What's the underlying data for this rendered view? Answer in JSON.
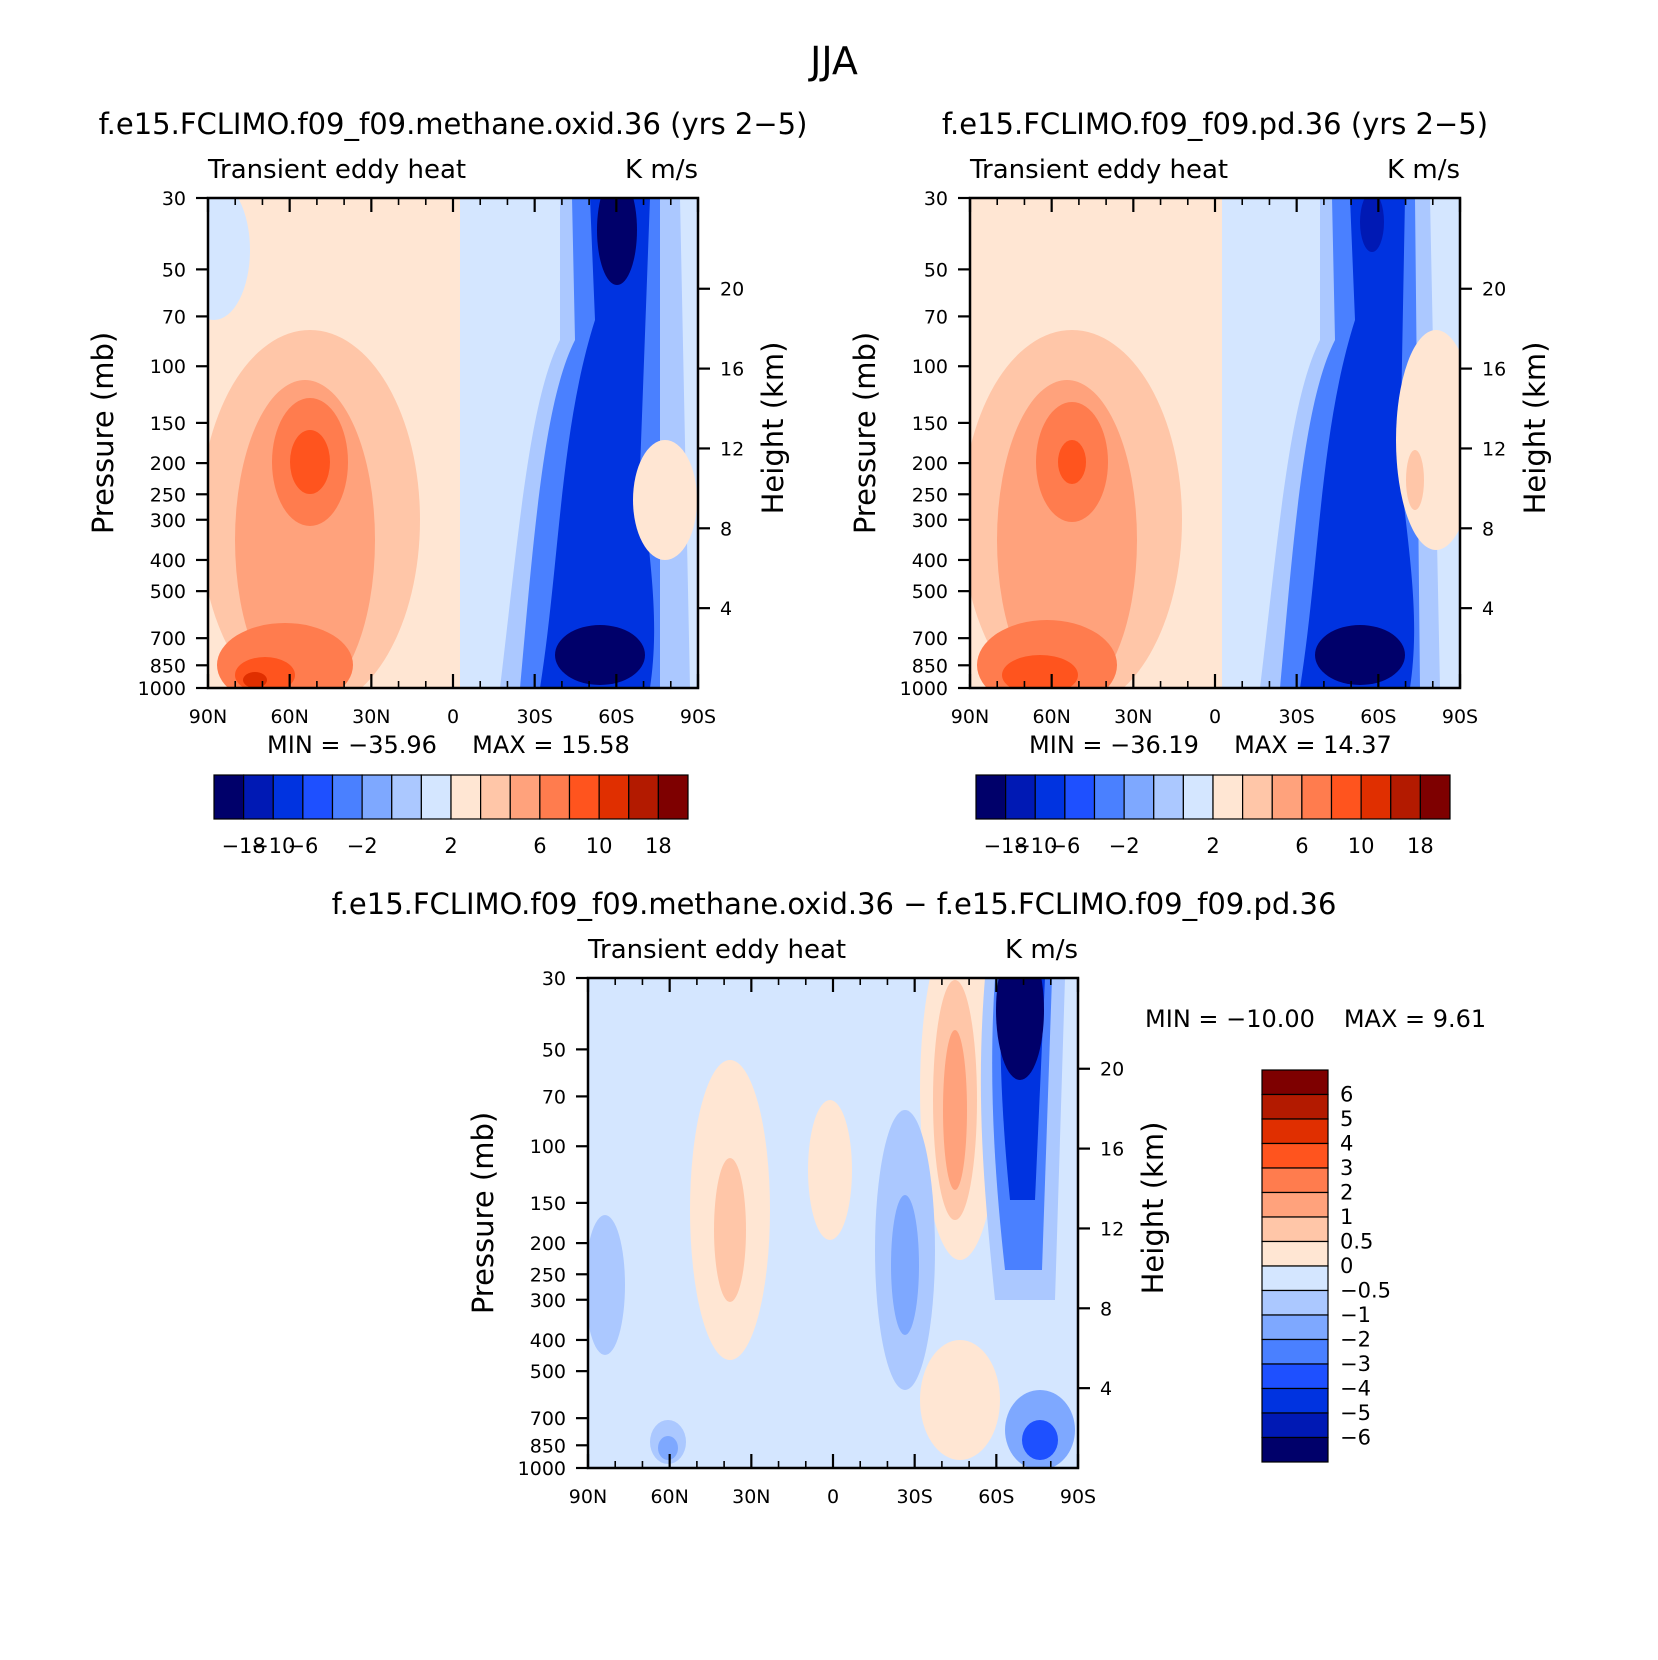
{
  "figure_title": "JJA",
  "colors": {
    "panel": [
      "#00006a",
      "#0019b4",
      "#0033e0",
      "#1e50ff",
      "#4a80ff",
      "#7ea8ff",
      "#abc8ff",
      "#d4e6ff",
      "#ffe6d3",
      "#ffc6a8",
      "#ffa27c",
      "#ff7c4e",
      "#ff541e",
      "#e02f00",
      "#b31a00",
      "#7e0000"
    ],
    "diff": [
      "#00006a",
      "#0019b4",
      "#0033e0",
      "#1e50ff",
      "#4a80ff",
      "#7ea8ff",
      "#abc8ff",
      "#d4e6ff",
      "#ffe6d3",
      "#ffc6a8",
      "#ffa27c",
      "#ff7c4e",
      "#ff541e",
      "#e02f00",
      "#b31a00",
      "#7e0000"
    ]
  },
  "chart_data": [
    {
      "type": "heatmap",
      "title": "f.e15.FCLIMO.f09_f09.methane.oxid.36 (yrs 2−5)",
      "left_label": "Transient eddy heat",
      "right_label": "K m/s",
      "ylabel": "Pressure (mb)",
      "ylabel_right": "Height (km)",
      "xticks": [
        "90N",
        "60N",
        "30N",
        "0",
        "30S",
        "60S",
        "90S"
      ],
      "yticks": [
        "30",
        "50",
        "70",
        "100",
        "150",
        "200",
        "250",
        "300",
        "400",
        "500",
        "700",
        "850",
        "1000"
      ],
      "height_ticks": [
        "4",
        "8",
        "12",
        "16",
        "20"
      ],
      "min_label": "MIN = −35.96",
      "max_label": "MAX =   15.58",
      "min_value": -35.96,
      "max_value": 15.58,
      "colorbar_ticks": [
        "−18",
        "−10",
        "−6",
        "−2",
        "2",
        "6",
        "10",
        "18"
      ],
      "levels": [
        -18,
        -14,
        -10,
        -8,
        -6,
        -4,
        -2,
        0,
        2,
        4,
        6,
        8,
        10,
        14,
        18
      ]
    },
    {
      "type": "heatmap",
      "title": "f.e15.FCLIMO.f09_f09.pd.36 (yrs 2−5)",
      "left_label": "Transient eddy heat",
      "right_label": "K m/s",
      "ylabel": "Pressure (mb)",
      "ylabel_right": "Height (km)",
      "xticks": [
        "90N",
        "60N",
        "30N",
        "0",
        "30S",
        "60S",
        "90S"
      ],
      "yticks": [
        "30",
        "50",
        "70",
        "100",
        "150",
        "200",
        "250",
        "300",
        "400",
        "500",
        "700",
        "850",
        "1000"
      ],
      "height_ticks": [
        "4",
        "8",
        "12",
        "16",
        "20"
      ],
      "min_label": "MIN = −36.19",
      "max_label": "MAX =   14.37",
      "min_value": -36.19,
      "max_value": 14.37,
      "colorbar_ticks": [
        "−18",
        "−10",
        "−6",
        "−2",
        "2",
        "6",
        "10",
        "18"
      ],
      "levels": [
        -18,
        -14,
        -10,
        -8,
        -6,
        -4,
        -2,
        0,
        2,
        4,
        6,
        8,
        10,
        14,
        18
      ]
    },
    {
      "type": "heatmap",
      "title": "f.e15.FCLIMO.f09_f09.methane.oxid.36 − f.e15.FCLIMO.f09_f09.pd.36",
      "left_label": "Transient eddy heat",
      "right_label": "K m/s",
      "ylabel": "Pressure (mb)",
      "ylabel_right": "Height (km)",
      "xticks": [
        "90N",
        "60N",
        "30N",
        "0",
        "30S",
        "60S",
        "90S"
      ],
      "yticks": [
        "30",
        "50",
        "70",
        "100",
        "150",
        "200",
        "250",
        "300",
        "400",
        "500",
        "700",
        "850",
        "1000"
      ],
      "height_ticks": [
        "4",
        "8",
        "12",
        "16",
        "20"
      ],
      "min_label": "MIN = −10.00",
      "max_label": "MAX =    9.61",
      "min_value": -10.0,
      "max_value": 9.61,
      "colorbar_ticks": [
        "6",
        "5",
        "4",
        "3",
        "2",
        "1",
        "0.5",
        "0",
        "−0.5",
        "−1",
        "−2",
        "−3",
        "−4",
        "−5",
        "−6"
      ],
      "levels": [
        -6,
        -5,
        -4,
        -3,
        -2,
        -1,
        -0.5,
        0,
        0.5,
        1,
        2,
        3,
        4,
        5,
        6
      ]
    }
  ]
}
